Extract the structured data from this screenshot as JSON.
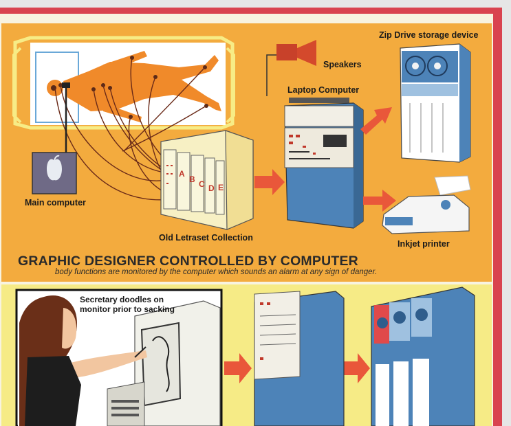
{
  "labels": {
    "speakers": "Speakers",
    "zip_drive": "Zip Drive storage device",
    "laptop": "Laptop Computer",
    "main_computer": "Main computer",
    "letraset": "Old Letraset Collection",
    "inkjet": "Inkjet printer",
    "drawers": [
      "A",
      "B",
      "C",
      "D",
      "E"
    ]
  },
  "heading": "GRAPHIC DESIGNER CONTROLLED BY COMPUTER",
  "subheading": "body functions are monitored by the computer which sounds an alarm at any sign of danger.",
  "caption": {
    "line1": "Secretary doodles on",
    "line2": "monitor prior to sacking"
  },
  "colors": {
    "top_panel": "#f3ab3e",
    "bottom_panel": "#f6eb86",
    "cover_edge": "#d9434f",
    "computer_blue": "#4d83b8",
    "arrow": "#e9573a",
    "figure": "#f08a2a"
  }
}
